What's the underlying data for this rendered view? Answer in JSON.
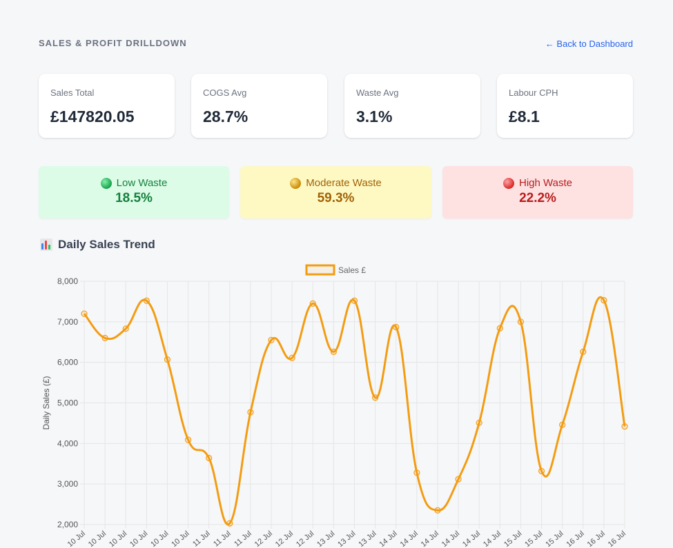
{
  "header": {
    "title": "SALES & PROFIT DRILLDOWN",
    "back_link": "← Back to Dashboard"
  },
  "kpis": [
    {
      "label": "Sales Total",
      "value": "£147820.05"
    },
    {
      "label": "COGS Avg",
      "value": "28.7%"
    },
    {
      "label": "Waste Avg",
      "value": "3.1%"
    },
    {
      "label": "Labour CPH",
      "value": "£8.1"
    }
  ],
  "waste_bands": [
    {
      "label": "Low Waste",
      "value": "18.5%",
      "color": "#15803d"
    },
    {
      "label": "Moderate Waste",
      "value": "59.3%",
      "color": "#a16207"
    },
    {
      "label": "High Waste",
      "value": "22.2%",
      "color": "#b91c1c"
    }
  ],
  "section": {
    "title": "Daily Sales Trend",
    "icon": "bar-chart-icon"
  },
  "chart_data": {
    "type": "line",
    "ylabel": "Daily Sales (£)",
    "xlabel": "",
    "ylim": [
      2000,
      8000
    ],
    "yticks": [
      2000,
      3000,
      4000,
      5000,
      6000,
      7000,
      8000
    ],
    "grid": true,
    "legend_position": "top-center",
    "series_color": "#f39c12",
    "categories": [
      "10 Jul",
      "10 Jul",
      "10 Jul",
      "10 Jul",
      "10 Jul",
      "10 Jul",
      "11 Jul",
      "11 Jul",
      "11 Jul",
      "12 Jul",
      "12 Jul",
      "12 Jul",
      "13 Jul",
      "13 Jul",
      "13 Jul",
      "14 Jul",
      "14 Jul",
      "14 Jul",
      "14 Jul",
      "14 Jul",
      "14 Jul",
      "15 Jul",
      "15 Jul",
      "15 Jul",
      "16 Jul",
      "16 Jul",
      "16 Jul"
    ],
    "series": [
      {
        "name": "Sales £",
        "values": [
          7200,
          6600,
          6830,
          7520,
          6070,
          4090,
          3640,
          2030,
          4770,
          6550,
          6110,
          7450,
          6260,
          7520,
          5130,
          6870,
          3280,
          2350,
          3120,
          4510,
          6840,
          7000,
          3320,
          4460,
          6260,
          7530,
          4420
        ]
      }
    ]
  }
}
